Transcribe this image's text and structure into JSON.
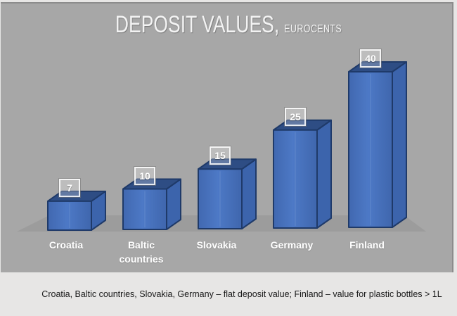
{
  "page": {
    "title_main": "DEPOSIT VALUES,",
    "title_sub": "EUROCENTS",
    "caption": "Croatia, Baltic countries, Slovakia, Germany – flat deposit value; Finland – value for plastic bottles > 1L"
  },
  "colors": {
    "panel_background": "#a7a7a7",
    "page_background": "#e7e6e5",
    "floor": "#9c9c9c",
    "bar_front": "#4673be",
    "bar_front_light": "#4d79c6",
    "bar_front_dark": "#4168b0",
    "bar_side": "#3c64ac",
    "bar_top": "#2e4d84",
    "bar_edge": "#1f3a69",
    "title_text": "#f3f3f3",
    "category_text": "#ffffff",
    "value_text": "#ffffff",
    "caption_text": "#1a1a1a"
  },
  "chart_data": {
    "type": "bar",
    "style": "3d-box",
    "title": "DEPOSIT VALUES, EUROCENTS",
    "unit": "eurocents",
    "categories": [
      "Croatia",
      "Baltic countries",
      "Slovakia",
      "Germany",
      "Finland"
    ],
    "values": [
      7,
      10,
      15,
      25,
      40
    ],
    "data_labels": [
      7,
      10,
      15,
      25,
      40
    ],
    "ylim": [
      0,
      40
    ],
    "legend": "none",
    "grid": false,
    "axis_labels_visible": false
  }
}
